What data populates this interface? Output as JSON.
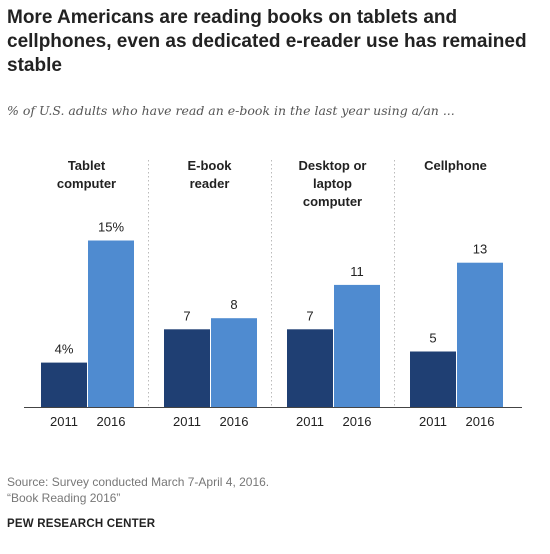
{
  "title": "More Americans are reading books on tablets and cellphones, even as dedicated e-reader use has remained stable",
  "subtitle": "% of U.S. adults who have read an e-book in the last year using a/an ...",
  "chart_data": {
    "type": "bar",
    "groups": [
      {
        "label": [
          "Tablet",
          "computer"
        ],
        "values": [
          4,
          15
        ],
        "value_labels": [
          "4%",
          "15%"
        ]
      },
      {
        "label": [
          "E-book",
          "reader"
        ],
        "values": [
          7,
          8
        ],
        "value_labels": [
          "7",
          "8"
        ]
      },
      {
        "label": [
          "Desktop or",
          "laptop",
          "computer"
        ],
        "values": [
          7,
          11
        ],
        "value_labels": [
          "7",
          "11"
        ]
      },
      {
        "label": [
          "Cellphone"
        ],
        "values": [
          5,
          13
        ],
        "value_labels": [
          "5",
          "13"
        ]
      }
    ],
    "categories": [
      "2011",
      "2016"
    ],
    "colors": [
      "#1f3f73",
      "#4f8bd0"
    ],
    "ylim": [
      0,
      15
    ]
  },
  "source_line1": "Source: Survey conducted March 7-April 4, 2016.",
  "source_line2": "“Book Reading 2016”",
  "brand": "PEW RESEARCH CENTER"
}
